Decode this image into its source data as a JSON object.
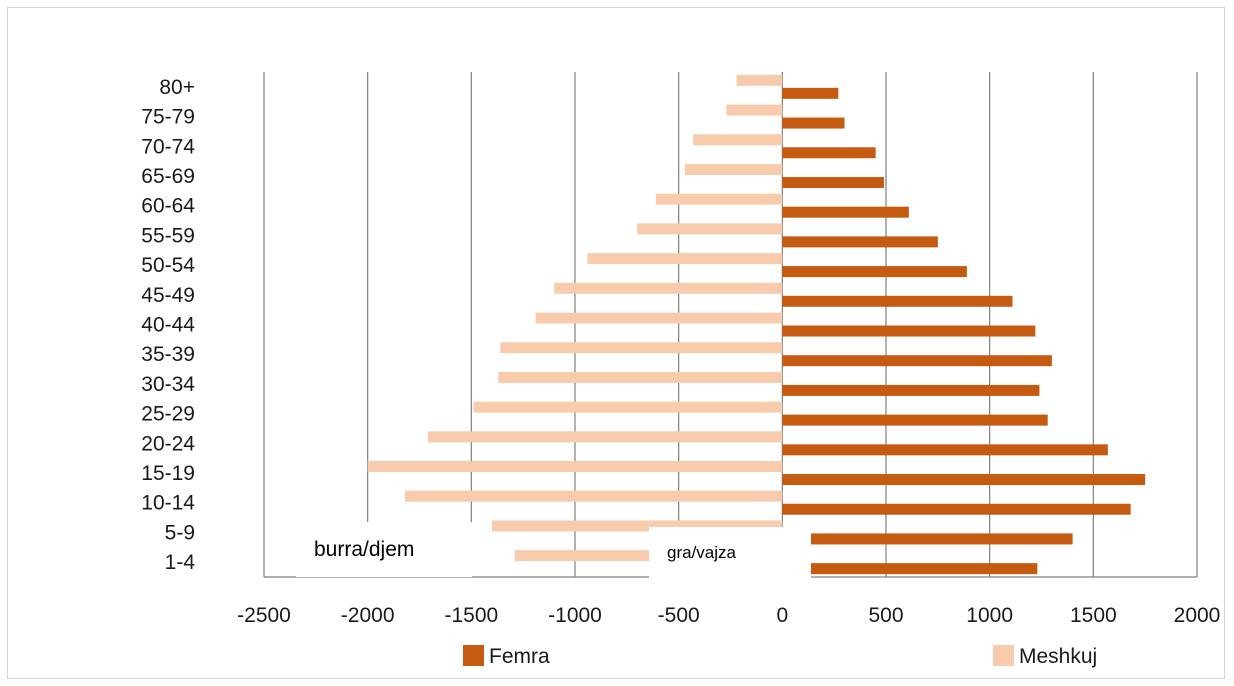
{
  "chart_data": {
    "type": "bar",
    "orientation": "horizontal",
    "layout": "population-pyramid",
    "categories": [
      "80+",
      "75-79",
      "70-74",
      "65-69",
      "60-64",
      "55-59",
      "50-54",
      "45-49",
      "40-44",
      "35-39",
      "30-34",
      "25-29",
      "20-24",
      "15-19",
      "10-14",
      "5-9",
      "1-4"
    ],
    "series": [
      {
        "name": "Femra",
        "color": "#c55a11",
        "values": [
          270,
          300,
          450,
          490,
          610,
          750,
          890,
          1110,
          1220,
          1300,
          1240,
          1280,
          1570,
          1750,
          1680,
          1400,
          1230
        ]
      },
      {
        "name": "Meshkuj",
        "color": "#f8cbad",
        "values": [
          -220,
          -270,
          -430,
          -470,
          -610,
          -700,
          -940,
          -1100,
          -1190,
          -1360,
          -1370,
          -1490,
          -1710,
          -2000,
          -1820,
          -1400,
          -1290
        ]
      }
    ],
    "xlim": [
      -2500,
      2000
    ],
    "xticks": [
      "-2500",
      "-2000",
      "-1500",
      "-1000",
      "-500",
      "0",
      "500",
      "1000",
      "1500",
      "2000"
    ],
    "grid": true,
    "legend": "bottom",
    "annotations": {
      "left": "burra/djem",
      "right": "gra/vajza"
    }
  }
}
